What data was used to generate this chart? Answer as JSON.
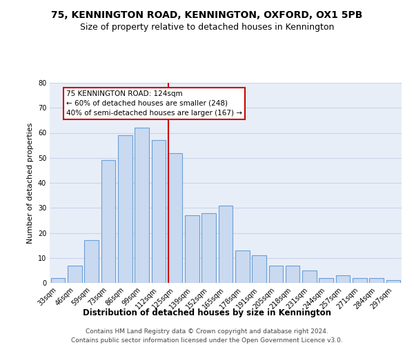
{
  "title": "75, KENNINGTON ROAD, KENNINGTON, OXFORD, OX1 5PB",
  "subtitle": "Size of property relative to detached houses in Kennington",
  "xlabel": "Distribution of detached houses by size in Kennington",
  "ylabel": "Number of detached properties",
  "bar_labels": [
    "33sqm",
    "46sqm",
    "59sqm",
    "73sqm",
    "86sqm",
    "99sqm",
    "112sqm",
    "125sqm",
    "139sqm",
    "152sqm",
    "165sqm",
    "178sqm",
    "191sqm",
    "205sqm",
    "218sqm",
    "231sqm",
    "244sqm",
    "257sqm",
    "271sqm",
    "284sqm",
    "297sqm"
  ],
  "bar_values": [
    2,
    7,
    17,
    49,
    59,
    62,
    57,
    52,
    27,
    28,
    31,
    13,
    11,
    7,
    7,
    5,
    2,
    3,
    2,
    2,
    1
  ],
  "bar_color": "#c9d9f0",
  "bar_edge_color": "#6b9fd4",
  "vline_color": "#cc0000",
  "annotation_text": "75 KENNINGTON ROAD: 124sqm\n← 60% of detached houses are smaller (248)\n40% of semi-detached houses are larger (167) →",
  "annotation_box_color": "#cc0000",
  "annotation_text_color": "#000000",
  "ylim": [
    0,
    80
  ],
  "yticks": [
    0,
    10,
    20,
    30,
    40,
    50,
    60,
    70,
    80
  ],
  "grid_color": "#c8d4e8",
  "background_color": "#e8eef8",
  "footer_line1": "Contains HM Land Registry data © Crown copyright and database right 2024.",
  "footer_line2": "Contains public sector information licensed under the Open Government Licence v3.0.",
  "title_fontsize": 10,
  "subtitle_fontsize": 9,
  "xlabel_fontsize": 8.5,
  "ylabel_fontsize": 8,
  "tick_fontsize": 7,
  "annotation_fontsize": 7.5,
  "footer_fontsize": 6.5
}
